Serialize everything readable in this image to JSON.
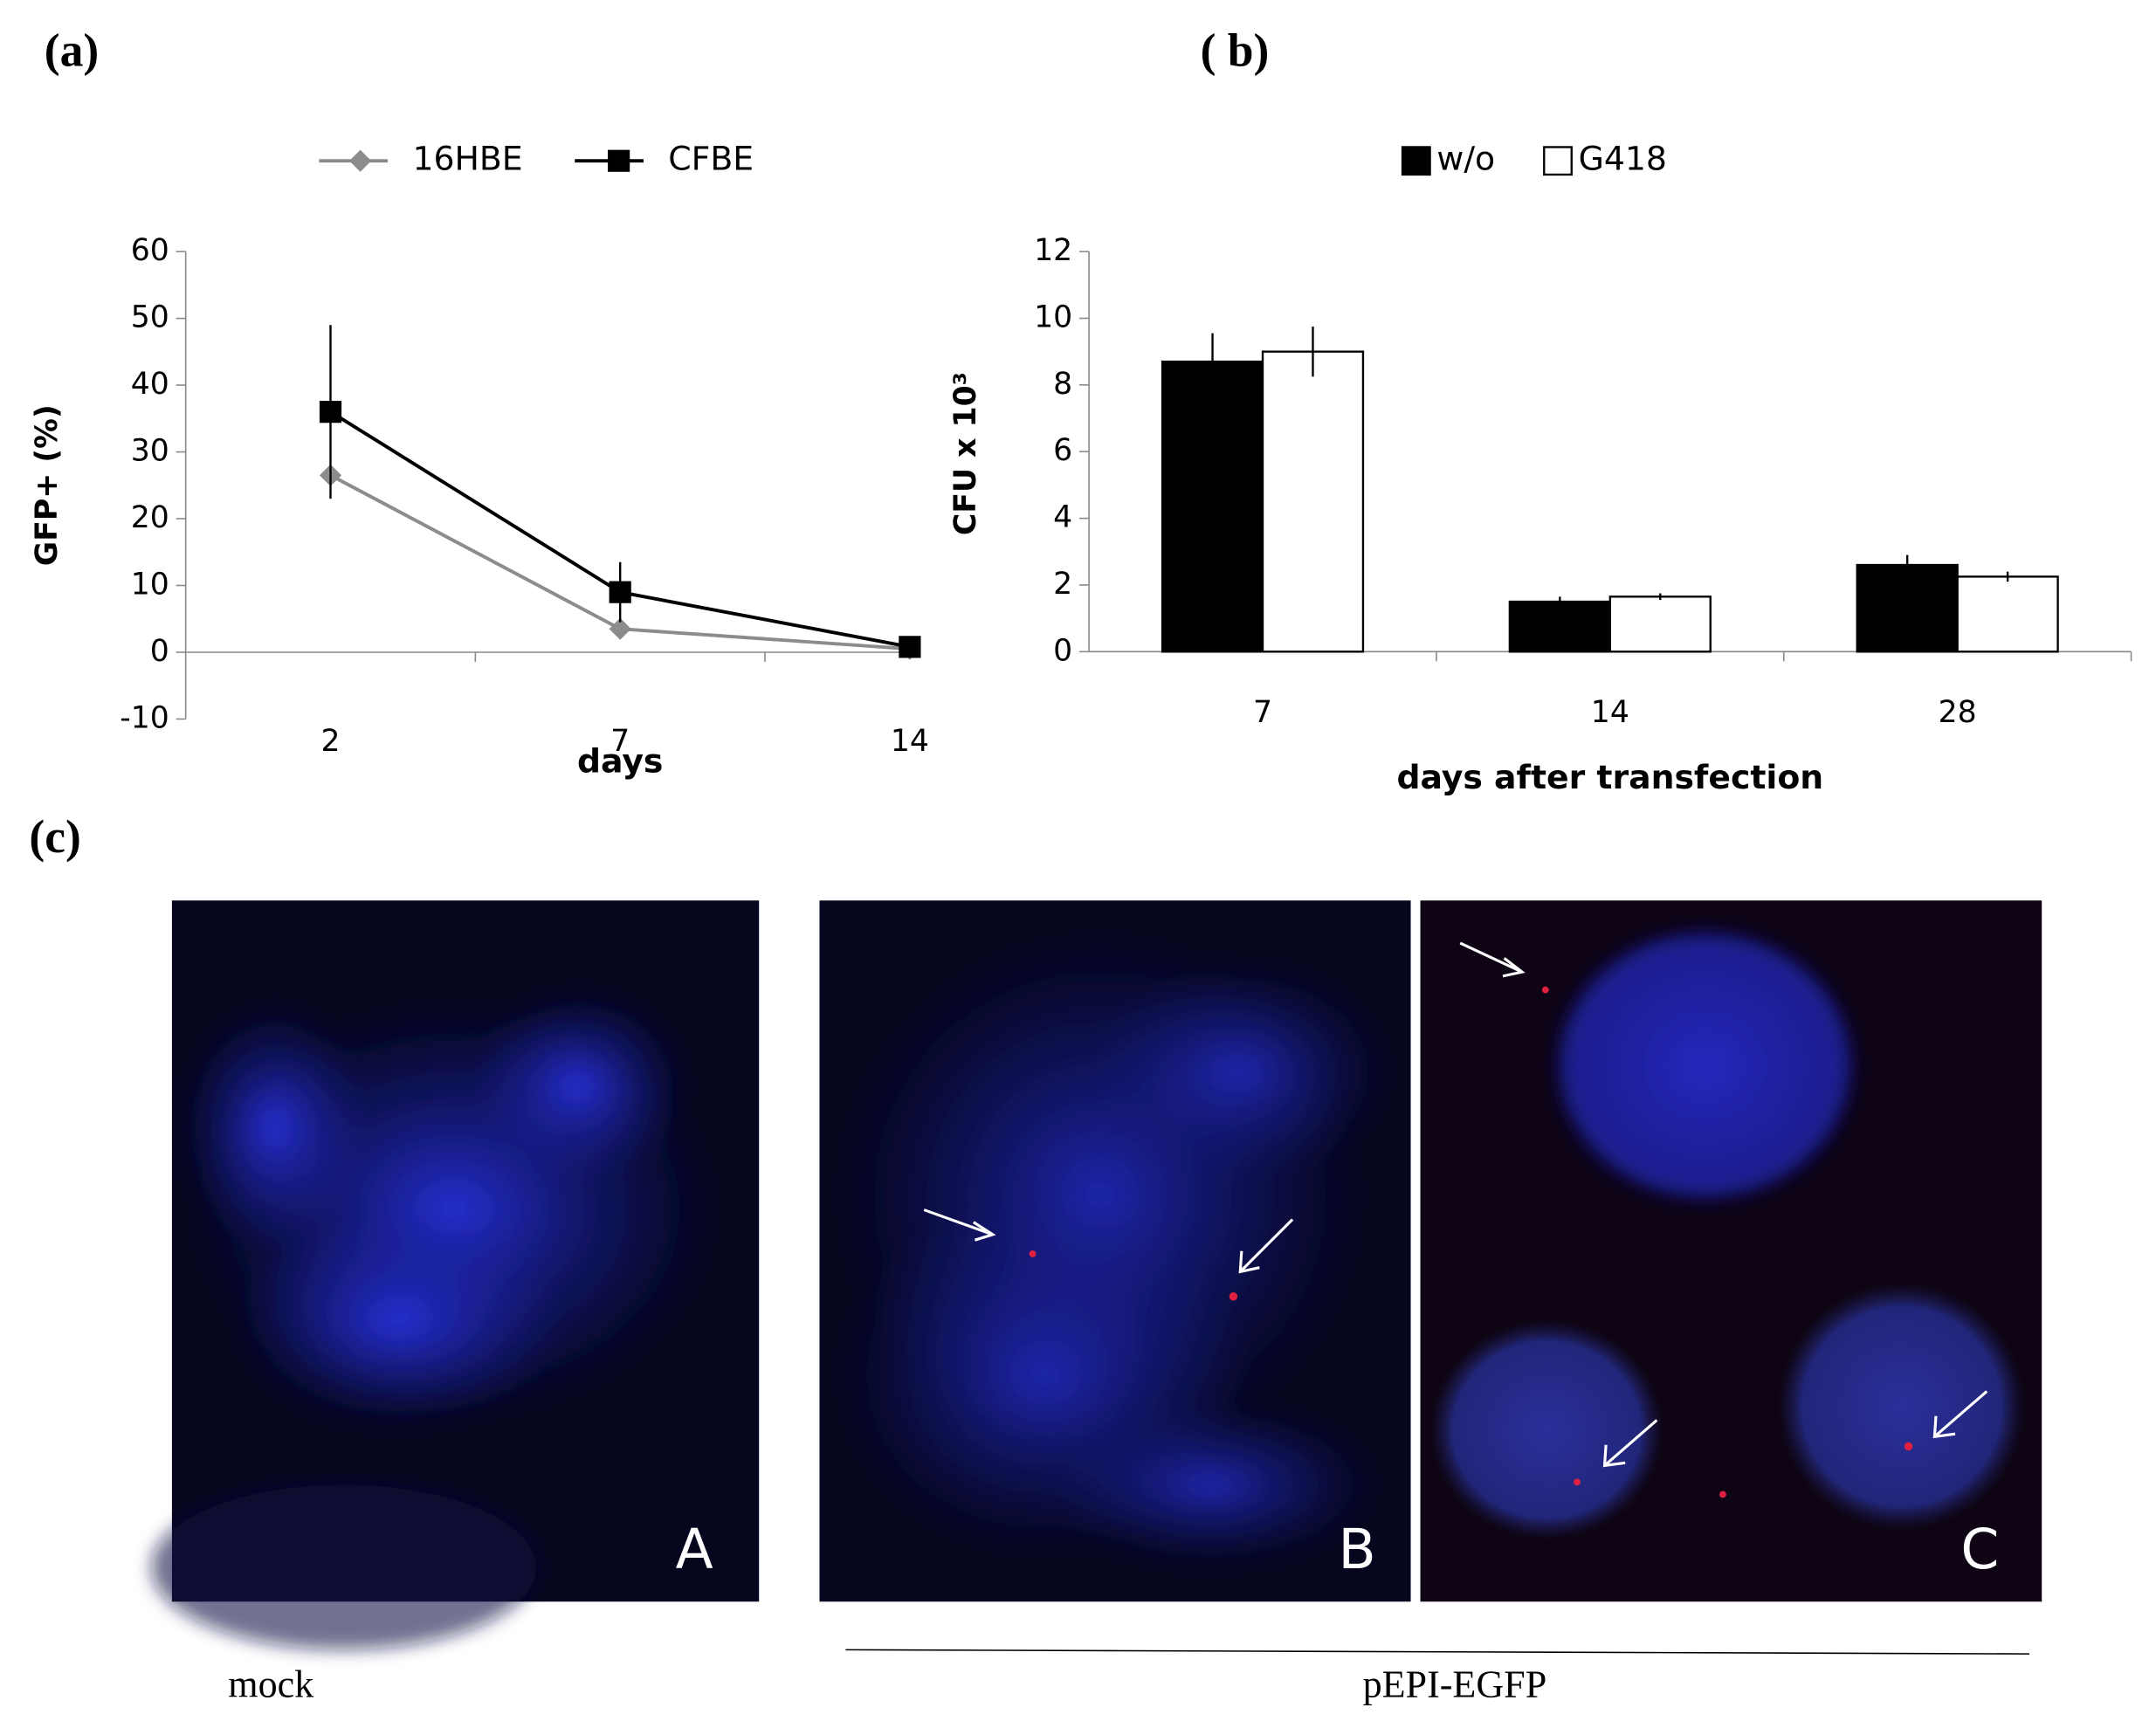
{
  "chart_data": [
    {
      "type": "line",
      "title": "(a)",
      "categories": [
        "2",
        "7",
        "14"
      ],
      "ylabel": "GFP+ (%)",
      "xlabel": "days",
      "ylim": [
        -10,
        60
      ],
      "yticks": [
        -10,
        0,
        10,
        20,
        30,
        40,
        50,
        60
      ],
      "series": [
        {
          "name": "16HBE",
          "color": "#8c8c8c",
          "marker": "diamond",
          "values": [
            26.5,
            3.5,
            0.5
          ]
        },
        {
          "name": "CFBE",
          "color": "#000000",
          "marker": "square",
          "values": [
            36,
            9,
            0.8
          ],
          "errors": [
            13,
            4.5,
            0.5
          ]
        }
      ]
    },
    {
      "type": "bar",
      "title": "( b)",
      "categories": [
        "7",
        "14",
        "28"
      ],
      "ylabel": "CFU x 10³",
      "xlabel": "days after transfection",
      "ylim": [
        0,
        12
      ],
      "yticks": [
        0,
        2,
        4,
        6,
        8,
        10,
        12
      ],
      "series": [
        {
          "name": "w/o",
          "color": "#000000",
          "values": [
            8.7,
            1.5,
            2.6
          ],
          "errors": [
            0.85,
            0.15,
            0.3
          ]
        },
        {
          "name": "G418",
          "color": "#ffffff",
          "values": [
            9.0,
            1.65,
            2.25
          ],
          "errors": [
            0.75,
            0.1,
            0.15
          ]
        }
      ]
    }
  ],
  "panel_label": "(c)",
  "micrographs": {
    "labels": [
      "A",
      "B",
      "C"
    ],
    "captions": [
      "mock",
      "pEPI-EGFP"
    ]
  }
}
